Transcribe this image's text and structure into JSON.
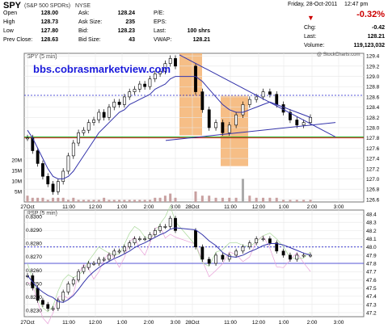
{
  "header": {
    "symbol": "SPY",
    "name": "(S&P 500 SPDRs)",
    "exchange": "NYSE",
    "date": "Friday, 28-Oct-2011",
    "time": "12:47 pm",
    "credit": "@ StockCharts.com",
    "change_pct": "-0.32%",
    "quotes": [
      {
        "k": "Open",
        "v": "128.00"
      },
      {
        "k": "High",
        "v": "128.73"
      },
      {
        "k": "Low",
        "v": "127.80"
      },
      {
        "k": "Prev Close:",
        "v": "128.63"
      }
    ],
    "quotes2": [
      {
        "k": "Ask:",
        "v": "128.24"
      },
      {
        "k": "Ask Size:",
        "v": "235"
      },
      {
        "k": "Bid:",
        "v": "128.23"
      },
      {
        "k": "Bid Size:",
        "v": "43"
      }
    ],
    "quotes3": [
      {
        "k": "P/E:",
        "v": ""
      },
      {
        "k": "EPS:",
        "v": ""
      },
      {
        "k": "Last:",
        "v": "100 shrs"
      },
      {
        "k": "VWAP:",
        "v": "128.21"
      }
    ],
    "right": [
      {
        "k": "Chg:",
        "v": "-0.42"
      },
      {
        "k": "Last:",
        "v": "128.21"
      },
      {
        "k": "Volume:",
        "v": "119,123,032"
      }
    ],
    "down_color": "#cc0000"
  },
  "watermark": "bbs.cobrasmarketview.com",
  "chart_data": [
    {
      "type": "line",
      "title": "SPY (5 min)",
      "x_ticks": [
        "27Oct",
        "11:00",
        "12:00",
        "1:00",
        "2:00",
        "3:00",
        "28Oct",
        "11:00",
        "12:00",
        "1:00",
        "2:00",
        "3:00"
      ],
      "price_ticks": [
        "129.4",
        "129.2",
        "129.0",
        "128.8",
        "128.6",
        "128.4",
        "128.2",
        "128.0",
        "127.8",
        "127.6",
        "127.4",
        "127.2",
        "127.0",
        "126.8",
        "126.6"
      ],
      "ylim": [
        126.55,
        129.45
      ],
      "volume_ticks": [
        "20M",
        "15M",
        "10M",
        "5M"
      ],
      "series": [
        {
          "name": "SPY",
          "values": [
            127.8,
            127.55,
            127.3,
            127.05,
            126.9,
            126.75,
            126.95,
            127.15,
            127.45,
            127.7,
            127.9,
            127.95,
            128.1,
            128.15,
            128.3,
            128.2,
            128.4,
            128.5,
            128.45,
            128.6,
            128.7,
            128.75,
            128.85,
            128.8,
            128.95,
            129.05,
            129.1,
            129.25,
            129.35,
            129.2,
            128.7,
            128.35,
            128.0,
            128.1,
            127.9,
            128.05,
            128.25,
            128.45,
            128.55,
            128.6,
            128.7,
            128.65,
            128.45,
            128.3,
            128.15,
            128.05,
            128.1,
            128.2
          ]
        },
        {
          "name": "MA",
          "values": [
            127.95,
            127.8,
            127.6,
            127.4,
            127.2,
            127.05,
            127.0,
            127.0,
            127.05,
            127.15,
            127.3,
            127.45,
            127.6,
            127.75,
            127.9,
            128.0,
            128.1,
            128.2,
            128.3,
            128.35,
            128.45,
            128.5,
            128.55,
            128.6,
            128.65,
            128.75,
            128.8,
            128.85,
            128.95,
            129.0,
            129.0,
            128.9,
            128.75,
            128.6,
            128.45,
            128.35,
            128.3,
            128.3,
            128.35,
            128.4,
            128.45,
            128.5,
            128.45,
            128.4,
            128.35,
            128.3,
            128.25,
            128.2
          ]
        }
      ],
      "volume_values": [
        3,
        2,
        2,
        2,
        1,
        2,
        2,
        2,
        1,
        2,
        1,
        1,
        1,
        1,
        1,
        2,
        1,
        1,
        1,
        1,
        1,
        1,
        1,
        1,
        1,
        2,
        2,
        3,
        4,
        2,
        5,
        3,
        3,
        2,
        2,
        2,
        2,
        11,
        3,
        2,
        2,
        2,
        2,
        1,
        1,
        1,
        1,
        1
      ],
      "levels": [
        128.63,
        127.8
      ]
    },
    {
      "type": "line",
      "title": "RSP (5 min)",
      "left_ticks": [
        "0.8300",
        "0.8290",
        "0.8280",
        "0.8270",
        "0.8260",
        "0.8250",
        "0.8240",
        "0.8230"
      ],
      "right_ticks": [
        "48.4",
        "48.3",
        "48.2",
        "48.1",
        "48.0",
        "47.9",
        "47.8",
        "47.7",
        "47.6",
        "47.5",
        "47.4",
        "47.3",
        "47.2"
      ],
      "ylim": [
        47.15,
        48.45
      ],
      "series": [
        {
          "name": "RSP",
          "values": [
            47.65,
            47.5,
            47.35,
            47.3,
            47.25,
            47.25,
            47.35,
            47.45,
            47.55,
            47.6,
            47.7,
            47.75,
            47.8,
            47.8,
            47.85,
            47.85,
            47.9,
            47.95,
            47.95,
            48.0,
            48.05,
            48.1,
            48.1,
            48.1,
            48.15,
            48.2,
            48.25,
            48.25,
            48.35,
            48.2,
            48.0,
            47.85,
            47.8,
            47.9,
            47.85,
            47.9,
            47.95,
            48.0,
            48.05,
            48.1,
            48.1,
            48.05,
            47.95,
            47.9,
            47.85,
            47.9,
            47.9,
            47.9
          ]
        }
      ],
      "levels": [
        48.0,
        47.8
      ]
    }
  ]
}
